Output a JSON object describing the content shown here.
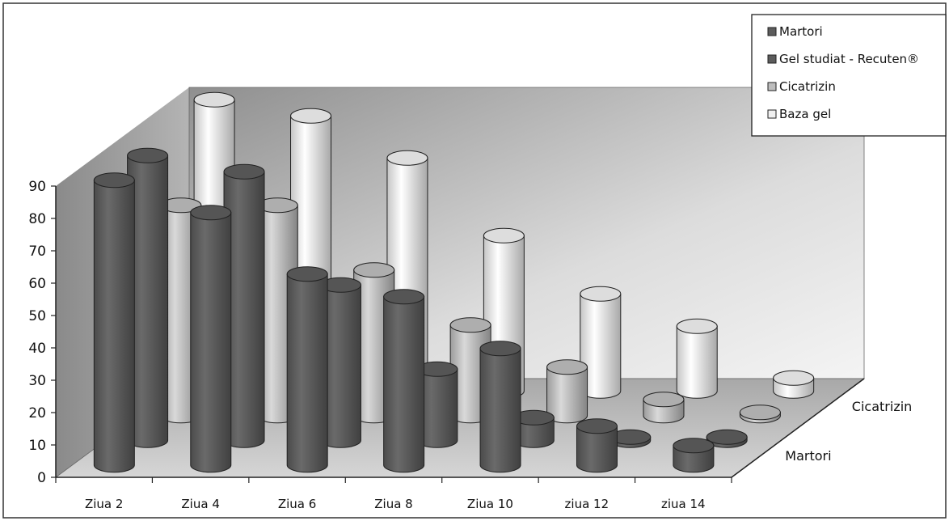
{
  "chart_data": {
    "type": "bar",
    "style": "3d-cylinder",
    "categories": [
      "Ziua 2",
      "Ziua 4",
      "Ziua 6",
      "Ziua 8",
      "Ziua 10",
      "ziua 12",
      "ziua 14"
    ],
    "depth_labels": [
      "Martori",
      "Cicatrizin"
    ],
    "yticks": [
      "0",
      "10",
      "20",
      "30",
      "40",
      "50",
      "60",
      "70",
      "80",
      "90"
    ],
    "ylim": [
      0,
      90
    ],
    "grid": false,
    "legend_position": "top-right",
    "series": [
      {
        "name": "Martori",
        "color": "#5c5c5c",
        "values": [
          88,
          78,
          59,
          52,
          36,
          12,
          6
        ]
      },
      {
        "name": "Gel studiat - Recuten®",
        "color": "#5c5c5c",
        "values": [
          88,
          83,
          48,
          22,
          7,
          1,
          1
        ]
      },
      {
        "name": "Cicatrizin",
        "color": "#bdbdbd",
        "values": [
          65,
          65,
          45,
          28,
          15,
          5,
          1
        ]
      },
      {
        "name": "Baza gel",
        "color": "#f0f0f0",
        "values": [
          90,
          85,
          72,
          48,
          30,
          20,
          4
        ]
      }
    ]
  }
}
